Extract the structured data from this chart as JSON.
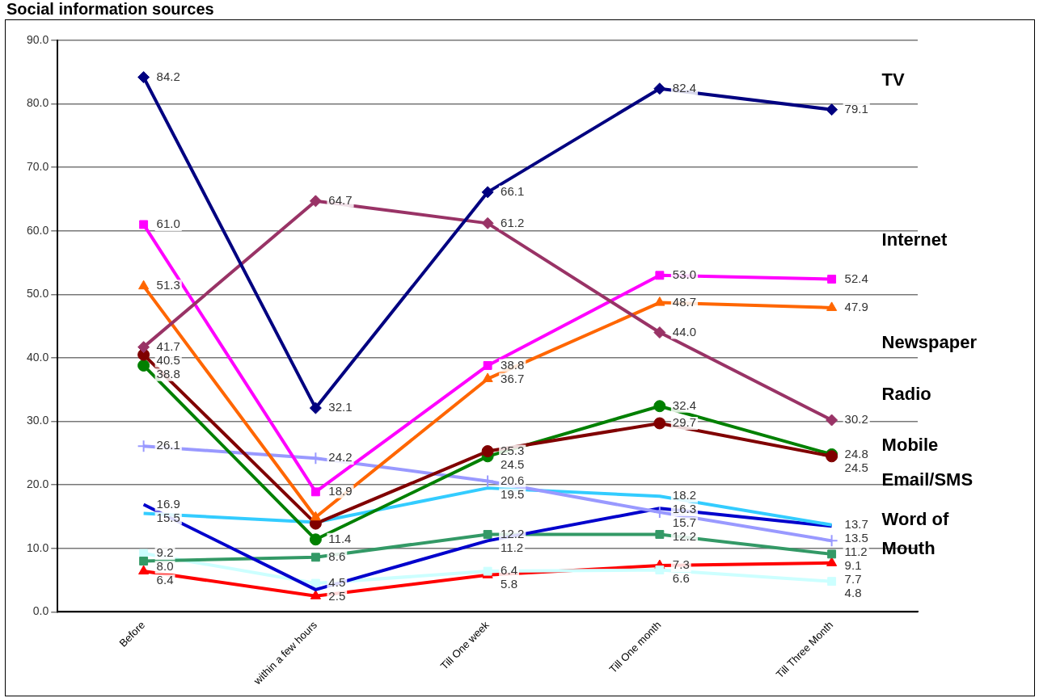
{
  "chart_data": {
    "type": "line",
    "title": "Social information sources",
    "categories": [
      "Before",
      "within a few hours",
      "Till One week",
      "Till One month",
      "Till Three Month"
    ],
    "series": [
      {
        "color": "#000080",
        "marker": "diamond",
        "values": [
          84.2,
          32.1,
          66.1,
          82.4,
          79.1
        ],
        "value_labels": [
          "84.2",
          "32.1",
          "66.1",
          "82.4",
          "79.1"
        ]
      },
      {
        "color": "#993366",
        "marker": "diamond",
        "values": [
          41.7,
          64.7,
          61.2,
          44.0,
          30.2
        ],
        "value_labels": [
          "41.7",
          "64.7",
          "61.2",
          "44.0",
          "30.2"
        ]
      },
      {
        "color": "#ff00ff",
        "marker": "square",
        "values": [
          61.0,
          18.9,
          38.8,
          53.0,
          52.4
        ],
        "value_labels": [
          "61.0",
          "18.9",
          "38.8",
          "53.0",
          "52.4"
        ]
      },
      {
        "color": "#ff6600",
        "marker": "triangle",
        "values": [
          51.3,
          14.9,
          36.7,
          48.7,
          47.9
        ],
        "value_labels": [
          "51.3",
          null,
          "36.7",
          "48.7",
          "47.9"
        ]
      },
      {
        "color": "#800000",
        "marker": "circle",
        "values": [
          40.5,
          13.9,
          25.3,
          29.7,
          24.5
        ],
        "value_labels": [
          "40.5",
          null,
          "25.3",
          "29.7",
          "24.5"
        ]
      },
      {
        "color": "#008000",
        "marker": "circle",
        "values": [
          38.8,
          11.4,
          24.5,
          32.4,
          24.8
        ],
        "value_labels": [
          "38.8",
          "11.4",
          "24.5",
          "32.4",
          "24.8"
        ]
      },
      {
        "color": "#9999ff",
        "marker": "cross",
        "values": [
          26.1,
          24.2,
          20.6,
          15.7,
          11.2
        ],
        "value_labels": [
          "26.1",
          "24.2",
          "20.6",
          "15.7",
          "11.2"
        ]
      },
      {
        "color": "#33ccff",
        "marker": "none",
        "values": [
          15.5,
          14.1,
          19.5,
          18.2,
          13.7
        ],
        "value_labels": [
          "15.5",
          null,
          "19.5",
          "18.2",
          "13.7"
        ]
      },
      {
        "color": "#0000cc",
        "marker": "none",
        "values": [
          16.9,
          3.5,
          11.2,
          16.3,
          13.5
        ],
        "value_labels": [
          "16.9",
          null,
          "11.2",
          "16.3",
          "13.5"
        ]
      },
      {
        "color": "#339966",
        "marker": "square",
        "values": [
          8.0,
          8.6,
          12.2,
          12.2,
          9.1
        ],
        "value_labels": [
          "8.0",
          "8.6",
          "12.2",
          "12.2",
          "9.1"
        ]
      },
      {
        "color": "#ccffff",
        "marker": "square",
        "values": [
          9.2,
          4.5,
          6.4,
          6.6,
          4.8
        ],
        "value_labels": [
          "9.2",
          "4.5",
          "6.4",
          "6.6",
          "4.8"
        ]
      },
      {
        "color": "#ff0000",
        "marker": "triangle",
        "values": [
          6.4,
          2.5,
          5.8,
          7.3,
          7.7
        ],
        "value_labels": [
          "6.4",
          "2.5",
          "5.8",
          "7.3",
          "7.7"
        ]
      }
    ],
    "ylim": [
      0,
      90
    ],
    "yticks": [
      {
        "value": 0,
        "label": "0.0"
      },
      {
        "value": 10,
        "label": "10.0"
      },
      {
        "value": 20,
        "label": "20.0"
      },
      {
        "value": 30,
        "label": "30.0"
      },
      {
        "value": 40,
        "label": "40.0"
      },
      {
        "value": 50,
        "label": "50.0"
      },
      {
        "value": 60,
        "label": "60.0"
      },
      {
        "value": 70,
        "label": "70.0"
      },
      {
        "value": 80,
        "label": "80.0"
      },
      {
        "value": 90,
        "label": "90.0"
      }
    ],
    "grid": "y",
    "legend": false,
    "annotations": [
      "TV",
      "Internet",
      "Newspaper",
      "Radio",
      "Mobile",
      "Email/SMS",
      "Word of",
      "Mouth"
    ]
  }
}
